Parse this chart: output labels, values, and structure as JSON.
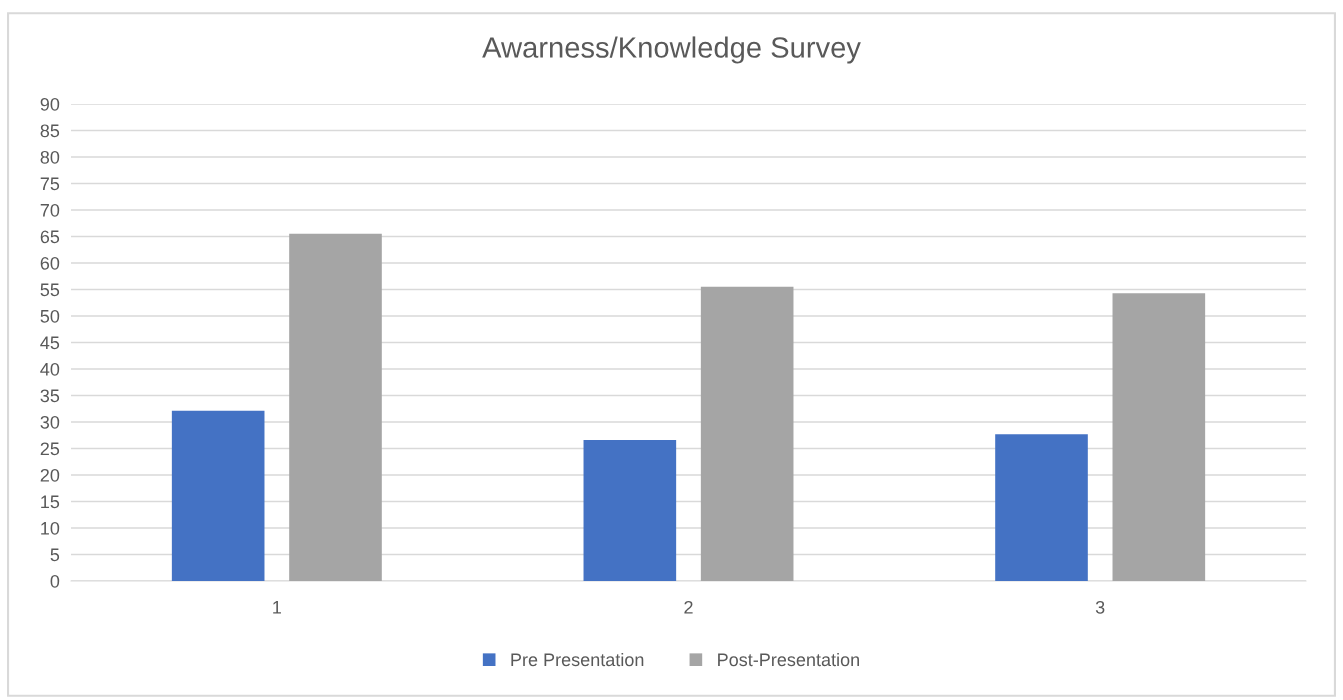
{
  "chart_data": {
    "type": "bar",
    "title": "Awarness/Knowledge Survey",
    "categories": [
      "1",
      "2",
      "3"
    ],
    "series": [
      {
        "name": "Pre Presentation",
        "color": "#4472c4",
        "values": [
          32.1,
          26.6,
          27.7
        ]
      },
      {
        "name": "Post-Presentation",
        "color": "#a5a5a5",
        "values": [
          65.5,
          55.5,
          54.3
        ]
      }
    ],
    "ylim": [
      0,
      90
    ],
    "yticks": [
      0,
      5,
      10,
      15,
      20,
      25,
      30,
      35,
      40,
      45,
      50,
      55,
      60,
      65,
      70,
      75,
      80,
      85,
      90
    ],
    "grid": "y",
    "legend": "bottom"
  }
}
